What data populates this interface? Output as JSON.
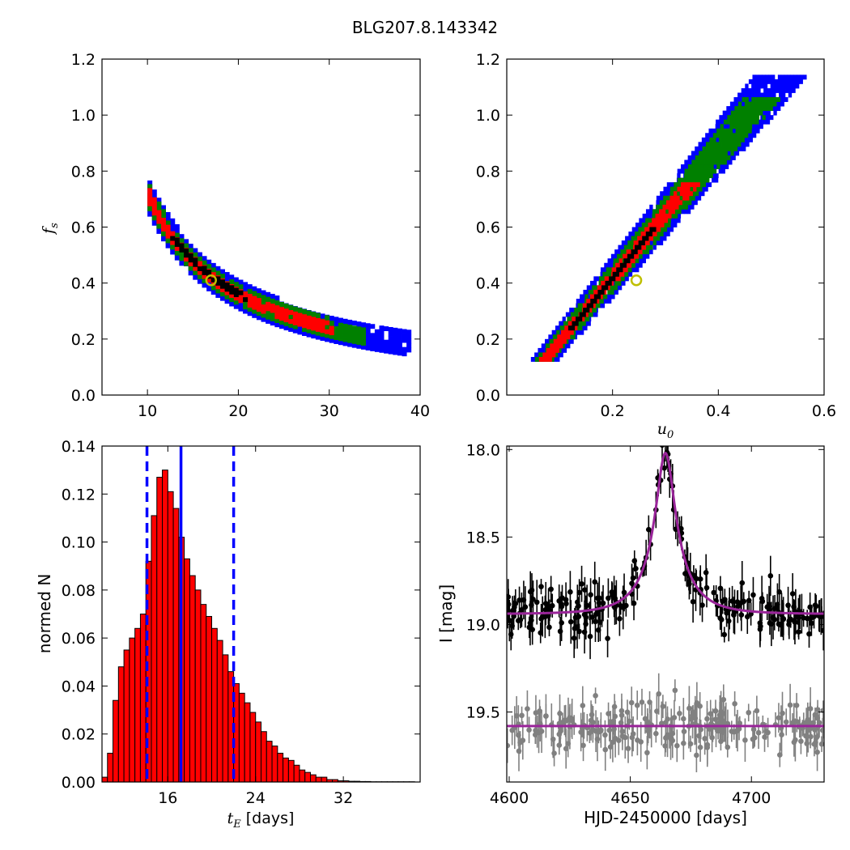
{
  "suptitle": "BLG207.8.143342",
  "colors": {
    "level3": "#0000ff",
    "level2": "#008000",
    "level1": "#ff0000",
    "best": "#000000",
    "marker_edge": "#bfbf00",
    "hist_bar": "#ff0000",
    "hist_line": "#0000ff",
    "model": "#9a259a",
    "data_main": "#000000",
    "data_baseline": "#808080"
  },
  "chart_data": [
    {
      "id": "fs_vs_tE",
      "type": "heatmap",
      "title": "",
      "xlabel": "",
      "ylabel": "f_s",
      "xlim": [
        5,
        40
      ],
      "ylim": [
        0.0,
        1.2
      ],
      "xticks": [
        10,
        20,
        30,
        40
      ],
      "yticks": [
        0.0,
        0.2,
        0.4,
        0.6,
        0.8,
        1.0,
        1.2
      ],
      "ytick_labels": [
        "0.0",
        "0.2",
        "0.4",
        "0.6",
        "0.8",
        "1.0",
        "1.2"
      ],
      "relation": "f_s ≈ 7.0 / t_E",
      "tE_range": [
        10.0,
        38.5
      ],
      "confidence_half_widths_in_fs": {
        "level3": 0.055,
        "level2": 0.038,
        "level1": 0.022,
        "best": 0.008
      },
      "best_fit": {
        "x": 17.0,
        "y": 0.41
      }
    },
    {
      "id": "fs_vs_u0",
      "type": "heatmap",
      "title": "",
      "xlabel": "u_0",
      "ylabel": "",
      "xlim": [
        0.0,
        0.6
      ],
      "ylim": [
        0.0,
        1.2
      ],
      "xticks": [
        0.2,
        0.4,
        0.6
      ],
      "xtick_labels": [
        "0.2",
        "0.4",
        "0.6"
      ],
      "yticks": [
        0.0,
        0.2,
        0.4,
        0.6,
        0.8,
        1.0,
        1.2
      ],
      "ytick_labels": [
        "0.0",
        "0.2",
        "0.4",
        "0.6",
        "0.8",
        "1.0",
        "1.2"
      ],
      "relation": "u_0 ≈ 0.29 * f_s^0.6 (roughly linear band)",
      "fs_range": [
        0.12,
        1.14
      ],
      "confidence_half_widths_in_u0": {
        "level3": 0.035,
        "level2": 0.024,
        "level1": 0.013,
        "best": 0.004
      },
      "best_fit": {
        "x": 0.245,
        "y": 0.41
      }
    },
    {
      "id": "tE_histogram",
      "type": "bar",
      "title": "",
      "xlabel": "t_E [days]",
      "ylabel": "normed N",
      "xlim": [
        10,
        39
      ],
      "ylim": [
        0.0,
        0.14
      ],
      "xticks": [
        16,
        24,
        32
      ],
      "yticks": [
        0.0,
        0.02,
        0.04,
        0.06,
        0.08,
        0.1,
        0.12,
        0.14
      ],
      "ytick_labels": [
        "0.00",
        "0.02",
        "0.04",
        "0.06",
        "0.08",
        "0.10",
        "0.12",
        "0.14"
      ],
      "bin_start": 10.0,
      "bin_width": 0.5,
      "values": [
        0.002,
        0.012,
        0.034,
        0.048,
        0.055,
        0.06,
        0.064,
        0.07,
        0.092,
        0.111,
        0.127,
        0.13,
        0.121,
        0.114,
        0.102,
        0.093,
        0.086,
        0.08,
        0.074,
        0.069,
        0.064,
        0.059,
        0.053,
        0.046,
        0.041,
        0.037,
        0.033,
        0.029,
        0.025,
        0.021,
        0.017,
        0.015,
        0.012,
        0.01,
        0.009,
        0.007,
        0.005,
        0.004,
        0.003,
        0.002,
        0.002,
        0.001,
        0.001,
        0.0005,
        0.0005,
        0.0003,
        0.0003,
        0.0002,
        0.0002,
        0.0001,
        0.0001,
        0.0001,
        0.0001,
        0.0001,
        0.0001,
        0.0001,
        0.0001
      ],
      "median_line": 17.2,
      "interval_lines": [
        14.1,
        22.0
      ]
    },
    {
      "id": "light_curve",
      "type": "scatter",
      "title": "",
      "xlabel": "HJD-2450000 [days]",
      "ylabel": "I [mag]",
      "xlim": [
        4599,
        4730
      ],
      "ylim": [
        19.9,
        17.98
      ],
      "xticks": [
        4600,
        4650,
        4700
      ],
      "yticks": [
        18.0,
        18.5,
        19.0,
        19.5
      ],
      "ytick_labels": [
        "18.0",
        "18.5",
        "19.0",
        "19.5"
      ],
      "model": {
        "t0": 4664.5,
        "peak_mag": 18.02,
        "baseline_mag": 18.94,
        "timescale_days": 17.0,
        "u0": 0.245,
        "fs": 0.41
      },
      "baseline_series": {
        "mag": 19.58,
        "scatter": 0.05
      },
      "n_points_per_series": 230
    }
  ]
}
